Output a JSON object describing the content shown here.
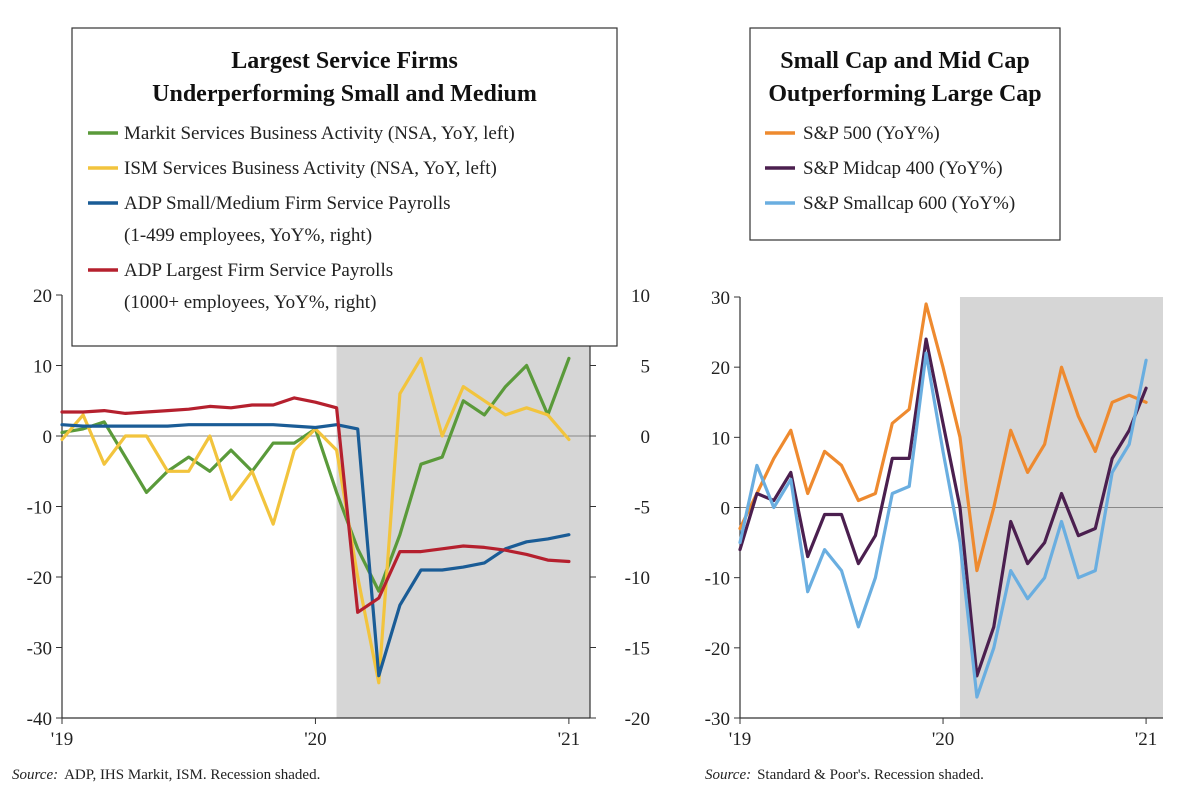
{
  "chart_data": [
    {
      "type": "line",
      "title": "Largest Service Firms\nUnderperforming Small and Medium",
      "x_tick_labels": [
        "'19",
        "'20",
        "'21"
      ],
      "x_range": [
        "2019-01",
        "2021-02"
      ],
      "y_left": {
        "range": [
          -40,
          20
        ],
        "ticks": [
          "20",
          "10",
          "0",
          "-10",
          "-20",
          "-30",
          "-40"
        ]
      },
      "y_right": {
        "range": [
          -20,
          10
        ],
        "ticks": [
          "10",
          "5",
          "0",
          "-5",
          "-10",
          "-15",
          "-20"
        ]
      },
      "recession": {
        "start": "2020-02",
        "end": "2021-02"
      },
      "legend": [
        {
          "line1": "Markit Services Business Activity (NSA, YoY, left)",
          "line2": "",
          "color": "#5a9a3a"
        },
        {
          "line1": "ISM Services Business Activity (NSA, YoY, left)",
          "line2": "",
          "color": "#f2c43d"
        },
        {
          "line1": "ADP Small/Medium Firm Service Payrolls",
          "line2": "(1-499 employees, YoY%, right)",
          "color": "#1a5c96"
        },
        {
          "line1": "ADP Largest Firm Service Payrolls",
          "line2": "(1000+ employees, YoY%, right)",
          "color": "#b5202e"
        }
      ],
      "series": [
        {
          "name": "Markit Services Business Activity (NSA, YoY, left)",
          "axis": "left",
          "color": "#5a9a3a",
          "x": [
            "2019-01",
            "2019-02",
            "2019-03",
            "2019-04",
            "2019-05",
            "2019-06",
            "2019-07",
            "2019-08",
            "2019-09",
            "2019-10",
            "2019-11",
            "2019-12",
            "2020-01",
            "2020-02",
            "2020-03",
            "2020-04",
            "2020-05",
            "2020-06",
            "2020-07",
            "2020-08",
            "2020-09",
            "2020-10",
            "2020-11",
            "2020-12",
            "2021-01"
          ],
          "values": [
            0.5,
            1,
            2,
            -3,
            -8,
            -5,
            -3,
            -5,
            -2,
            -5,
            -1,
            -1,
            1,
            -8,
            -16,
            -22,
            -14,
            -4,
            -3,
            5,
            3,
            7,
            10,
            3,
            11
          ]
        },
        {
          "name": "ISM Services Business Activity (NSA, YoY, left)",
          "axis": "left",
          "color": "#f2c43d",
          "x": [
            "2019-01",
            "2019-02",
            "2019-03",
            "2019-04",
            "2019-05",
            "2019-06",
            "2019-07",
            "2019-08",
            "2019-09",
            "2019-10",
            "2019-11",
            "2019-12",
            "2020-01",
            "2020-02",
            "2020-03",
            "2020-04",
            "2020-05",
            "2020-06",
            "2020-07",
            "2020-08",
            "2020-09",
            "2020-10",
            "2020-11",
            "2020-12",
            "2021-01"
          ],
          "values": [
            -0.5,
            3,
            -4,
            0,
            0,
            -5,
            -5,
            0,
            -9,
            -5,
            -12.5,
            -2,
            1,
            -2,
            -20,
            -35,
            6,
            11,
            0,
            7,
            5,
            3,
            4,
            3,
            -0.5
          ]
        },
        {
          "name": "ADP Small/Medium Firm Service Payrolls (1-499 employees, YoY%, right)",
          "axis": "right",
          "color": "#1a5c96",
          "x": [
            "2019-01",
            "2019-02",
            "2019-03",
            "2019-04",
            "2019-05",
            "2019-06",
            "2019-07",
            "2019-08",
            "2019-09",
            "2019-10",
            "2019-11",
            "2019-12",
            "2020-01",
            "2020-02",
            "2020-03",
            "2020-04",
            "2020-05",
            "2020-06",
            "2020-07",
            "2020-08",
            "2020-09",
            "2020-10",
            "2020-11",
            "2020-12",
            "2021-01"
          ],
          "values": [
            0.8,
            0.7,
            0.7,
            0.7,
            0.7,
            0.7,
            0.8,
            0.8,
            0.8,
            0.8,
            0.8,
            0.7,
            0.6,
            0.8,
            0.5,
            -17,
            -12,
            -9.5,
            -9.5,
            -9.3,
            -9,
            -8,
            -7.5,
            -7.3,
            -7
          ]
        },
        {
          "name": "ADP Largest Firm Service Payrolls (1000+ employees, YoY%, right)",
          "axis": "right",
          "color": "#b5202e",
          "x": [
            "2019-01",
            "2019-02",
            "2019-03",
            "2019-04",
            "2019-05",
            "2019-06",
            "2019-07",
            "2019-08",
            "2019-09",
            "2019-10",
            "2019-11",
            "2019-12",
            "2020-01",
            "2020-02",
            "2020-03",
            "2020-04",
            "2020-05",
            "2020-06",
            "2020-07",
            "2020-08",
            "2020-09",
            "2020-10",
            "2020-11",
            "2020-12",
            "2021-01"
          ],
          "values": [
            1.7,
            1.7,
            1.8,
            1.6,
            1.7,
            1.8,
            1.9,
            2.1,
            2.0,
            2.2,
            2.2,
            2.7,
            2.4,
            2.0,
            -12.5,
            -11.5,
            -8.2,
            -8.2,
            -8.0,
            -7.8,
            -7.9,
            -8.1,
            -8.4,
            -8.8,
            -8.9
          ]
        }
      ],
      "source": {
        "label": "Source:",
        "text": "ADP, IHS Markit, ISM. Recession shaded."
      }
    },
    {
      "type": "line",
      "title": "Small Cap and Mid Cap\nOutperforming Large Cap",
      "x_tick_labels": [
        "'19",
        "'20",
        "'21"
      ],
      "x_range": [
        "2019-01",
        "2021-02"
      ],
      "y_left": {
        "range": [
          -30,
          30
        ],
        "ticks": [
          "30",
          "20",
          "10",
          "0",
          "-10",
          "-20",
          "-30"
        ]
      },
      "recession": {
        "start": "2020-02",
        "end": "2021-02"
      },
      "legend": [
        {
          "line1": "S&P 500 (YoY%)",
          "line2": "",
          "color": "#ee8a2f"
        },
        {
          "line1": "S&P Midcap 400 (YoY%)",
          "line2": "",
          "color": "#4b1f4f"
        },
        {
          "line1": "S&P Smallcap 600 (YoY%)",
          "line2": "",
          "color": "#6aaee0"
        }
      ],
      "series": [
        {
          "name": "S&P 500 (YoY%)",
          "color": "#ee8a2f",
          "x": [
            "2019-01",
            "2019-02",
            "2019-03",
            "2019-04",
            "2019-05",
            "2019-06",
            "2019-07",
            "2019-08",
            "2019-09",
            "2019-10",
            "2019-11",
            "2019-12",
            "2020-01",
            "2020-02",
            "2020-03",
            "2020-04",
            "2020-05",
            "2020-06",
            "2020-07",
            "2020-08",
            "2020-09",
            "2020-10",
            "2020-11",
            "2020-12",
            "2021-01"
          ],
          "values": [
            -3,
            2,
            7,
            11,
            2,
            8,
            6,
            1,
            2,
            12,
            14,
            29,
            20,
            10,
            -9,
            0,
            11,
            5,
            9,
            20,
            13,
            8,
            15,
            16,
            15
          ]
        },
        {
          "name": "S&P Midcap 400 (YoY%)",
          "color": "#4b1f4f",
          "x": [
            "2019-01",
            "2019-02",
            "2019-03",
            "2019-04",
            "2019-05",
            "2019-06",
            "2019-07",
            "2019-08",
            "2019-09",
            "2019-10",
            "2019-11",
            "2019-12",
            "2020-01",
            "2020-02",
            "2020-03",
            "2020-04",
            "2020-05",
            "2020-06",
            "2020-07",
            "2020-08",
            "2020-09",
            "2020-10",
            "2020-11",
            "2020-12",
            "2021-01"
          ],
          "values": [
            -6,
            2,
            1,
            5,
            -7,
            -1,
            -1,
            -8,
            -4,
            7,
            7,
            24,
            12,
            0,
            -24,
            -17,
            -2,
            -8,
            -5,
            2,
            -4,
            -3,
            7,
            11,
            17
          ]
        },
        {
          "name": "S&P Smallcap 600 (YoY%)",
          "color": "#6aaee0",
          "x": [
            "2019-01",
            "2019-02",
            "2019-03",
            "2019-04",
            "2019-05",
            "2019-06",
            "2019-07",
            "2019-08",
            "2019-09",
            "2019-10",
            "2019-11",
            "2019-12",
            "2020-01",
            "2020-02",
            "2020-03",
            "2020-04",
            "2020-05",
            "2020-06",
            "2020-07",
            "2020-08",
            "2020-09",
            "2020-10",
            "2020-11",
            "2020-12",
            "2021-01"
          ],
          "values": [
            -5,
            6,
            0,
            4,
            -12,
            -6,
            -9,
            -17,
            -10,
            2,
            3,
            22,
            8,
            -5,
            -27,
            -20,
            -9,
            -13,
            -10,
            -2,
            -10,
            -9,
            5,
            9,
            21
          ]
        }
      ],
      "source": {
        "label": "Source:",
        "text": "Standard & Poor's. Recession shaded."
      }
    }
  ]
}
